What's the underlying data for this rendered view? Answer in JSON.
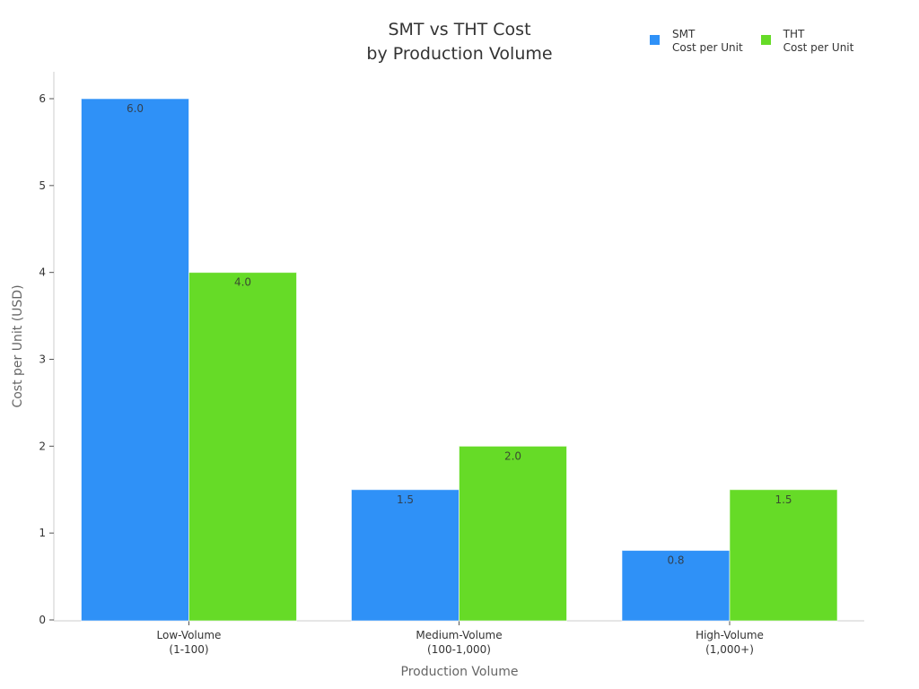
{
  "chart_data": {
    "type": "bar",
    "title": "SMT vs THT Cost\nby Production Volume",
    "title_lines": [
      "SMT vs THT Cost",
      "by Production Volume"
    ],
    "xlabel": "Production Volume",
    "ylabel": "Cost per Unit (USD)",
    "categories": [
      "Low-Volume\n(1-100)",
      "Medium-Volume\n(100-1,000)",
      "High-Volume\n(1,000+)"
    ],
    "category_lines": [
      [
        "Low-Volume",
        "(1-100)"
      ],
      [
        "Medium-Volume",
        "(100-1,000)"
      ],
      [
        "High-Volume",
        "(1,000+)"
      ]
    ],
    "series": [
      {
        "name": "SMT\nCost per Unit",
        "name_lines": [
          "SMT",
          "Cost per Unit"
        ],
        "color": "#2f91f7",
        "values": [
          6.0,
          1.5,
          0.8
        ],
        "labels": [
          "6.0",
          "1.5",
          "0.8"
        ]
      },
      {
        "name": "THT\nCost per Unit",
        "name_lines": [
          "THT",
          "Cost per Unit"
        ],
        "color": "#66db27",
        "values": [
          4.0,
          2.0,
          1.5
        ],
        "labels": [
          "4.0",
          "2.0",
          "1.5"
        ]
      }
    ],
    "yticks": [
      0,
      1,
      2,
      3,
      4,
      5,
      6
    ],
    "ylim": [
      0,
      6.3
    ],
    "grid": false,
    "legend_position": "top-right"
  }
}
